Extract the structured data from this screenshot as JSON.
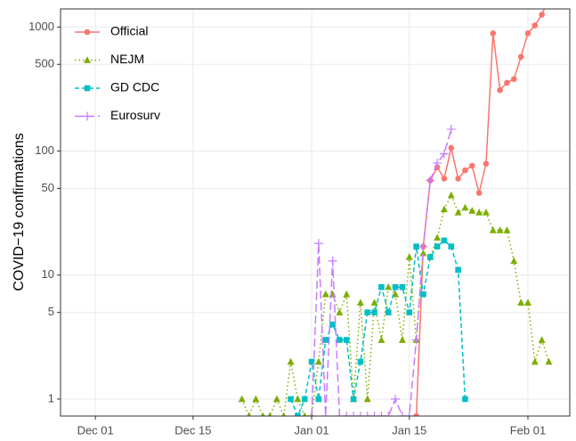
{
  "chart_data": {
    "type": "line",
    "y_label": "COVID−19 confirmations",
    "log_y": true,
    "grid": true,
    "legend_position": "top-left",
    "xlim": [
      "Nov 26",
      "Feb 07"
    ],
    "xticks": [
      "Dec 01",
      "Dec 15",
      "Jan 01",
      "Jan 15",
      "Feb 01"
    ],
    "ylim": [
      0.73,
      1400
    ],
    "yticks": [
      1,
      5,
      10,
      50,
      100,
      500,
      1000
    ],
    "series": [
      {
        "name": "Official",
        "color": "#F8766D",
        "marker": "circle",
        "linestyle": "solid",
        "x": [
          "Jan 16",
          "Jan 17",
          "Jan 18",
          "Jan 19",
          "Jan 20",
          "Jan 21",
          "Jan 22",
          "Jan 23",
          "Jan 24",
          "Jan 25",
          "Jan 26",
          "Jan 27",
          "Jan 28",
          "Jan 29",
          "Jan 30",
          "Jan 31",
          "Feb 01",
          "Feb 02",
          "Feb 03",
          "Feb 04"
        ],
        "values": [
          0,
          17,
          58,
          74,
          60,
          106,
          60,
          70,
          76,
          46,
          79,
          890,
          310,
          355,
          380,
          575,
          890,
          1030,
          1260,
          1700
        ]
      },
      {
        "name": "NEJM",
        "color": "#7CAE00",
        "marker": "triangle",
        "linestyle": "dotted",
        "x": [
          "Dec 22",
          "Dec 23",
          "Dec 24",
          "Dec 25",
          "Dec 26",
          "Dec 27",
          "Dec 28",
          "Dec 29",
          "Dec 30",
          "Dec 31",
          "Jan 01",
          "Jan 02",
          "Jan 03",
          "Jan 04",
          "Jan 05",
          "Jan 06",
          "Jan 07",
          "Jan 08",
          "Jan 09",
          "Jan 10",
          "Jan 11",
          "Jan 12",
          "Jan 13",
          "Jan 14",
          "Jan 15",
          "Jan 16",
          "Jan 17",
          "Jan 18",
          "Jan 19",
          "Jan 20",
          "Jan 21",
          "Jan 22",
          "Jan 23",
          "Jan 24",
          "Jan 25",
          "Jan 26",
          "Jan 27",
          "Jan 28",
          "Jan 29",
          "Jan 30",
          "Jan 31",
          "Feb 01",
          "Feb 02",
          "Feb 03",
          "Feb 04"
        ],
        "values": [
          1,
          0,
          1,
          0,
          0,
          1,
          0,
          2,
          1,
          0,
          0,
          2,
          7,
          7,
          5,
          7,
          1,
          6,
          1,
          6,
          3,
          8,
          7,
          3,
          14,
          3,
          15,
          14,
          20,
          34,
          44,
          32,
          35,
          33,
          32,
          32,
          23,
          23,
          23,
          13,
          6,
          6,
          2,
          3,
          2
        ]
      },
      {
        "name": "GD CDC",
        "color": "#00BFC4",
        "marker": "square",
        "linestyle": "dashed",
        "x": [
          "Dec 29",
          "Dec 30",
          "Dec 31",
          "Jan 01",
          "Jan 02",
          "Jan 03",
          "Jan 04",
          "Jan 05",
          "Jan 06",
          "Jan 07",
          "Jan 08",
          "Jan 09",
          "Jan 10",
          "Jan 11",
          "Jan 12",
          "Jan 13",
          "Jan 14",
          "Jan 15",
          "Jan 16",
          "Jan 17",
          "Jan 18",
          "Jan 19",
          "Jan 20",
          "Jan 21",
          "Jan 22",
          "Jan 23"
        ],
        "values": [
          1,
          0,
          1,
          2,
          1,
          3,
          4,
          3,
          3,
          1,
          2,
          5,
          5,
          8,
          5,
          8,
          8,
          5,
          17,
          7,
          14,
          17,
          19,
          17,
          11,
          1
        ]
      },
      {
        "name": "Eurosurv",
        "color": "#C77CFF",
        "marker": "plus",
        "linestyle": "longdash",
        "x": [
          "Jan 01",
          "Jan 02",
          "Jan 03",
          "Jan 04",
          "Jan 05",
          "Jan 06",
          "Jan 07",
          "Jan 08",
          "Jan 09",
          "Jan 10",
          "Jan 11",
          "Jan 12",
          "Jan 13",
          "Jan 14",
          "Jan 15",
          "Jan 16",
          "Jan 17",
          "Jan 18",
          "Jan 19",
          "Jan 20",
          "Jan 21"
        ],
        "values": [
          0,
          18,
          0,
          13,
          0,
          0,
          0,
          0,
          0,
          0,
          0,
          0,
          1,
          0,
          0,
          3,
          17,
          58,
          80,
          95,
          150
        ]
      }
    ]
  }
}
